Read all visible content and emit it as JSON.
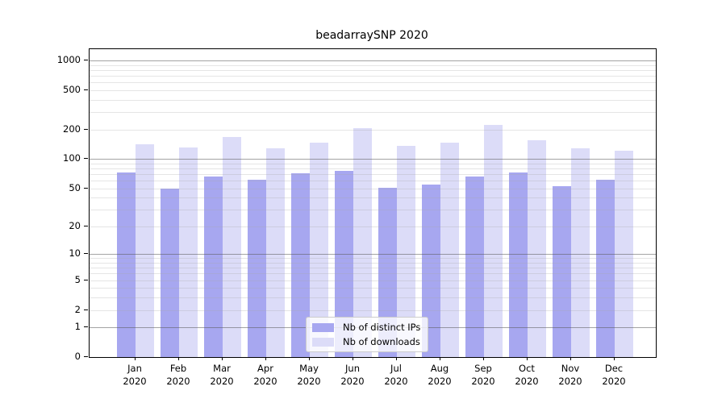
{
  "chart_data": {
    "type": "bar",
    "title": "beadarraySNP 2020",
    "categories": [
      "Jan",
      "Feb",
      "Mar",
      "Apr",
      "May",
      "Jun",
      "Jul",
      "Aug",
      "Sep",
      "Oct",
      "Nov",
      "Dec"
    ],
    "category_year_label": "2020",
    "series": [
      {
        "name": "Nb of distinct IPs",
        "color": "#a7a7f0",
        "values": [
          73,
          50,
          66,
          61,
          71,
          75,
          51,
          55,
          66,
          73,
          53,
          61
        ]
      },
      {
        "name": "Nb of downloads",
        "color": "#dcdcf8",
        "values": [
          140,
          130,
          166,
          128,
          146,
          205,
          136,
          146,
          222,
          154,
          128,
          121
        ]
      }
    ],
    "yscale": "log1p",
    "ylim": [
      0,
      1300
    ],
    "yticks": [
      1000,
      500,
      200,
      100,
      50,
      20,
      10,
      5,
      2,
      1,
      0
    ],
    "grid": true,
    "legend_position": "lower-center"
  },
  "colors": {
    "axis": "#000000",
    "grid_major": "#5a5a5a",
    "grid_minor": "#aaaaaa",
    "legend_border": "#cccccc"
  }
}
